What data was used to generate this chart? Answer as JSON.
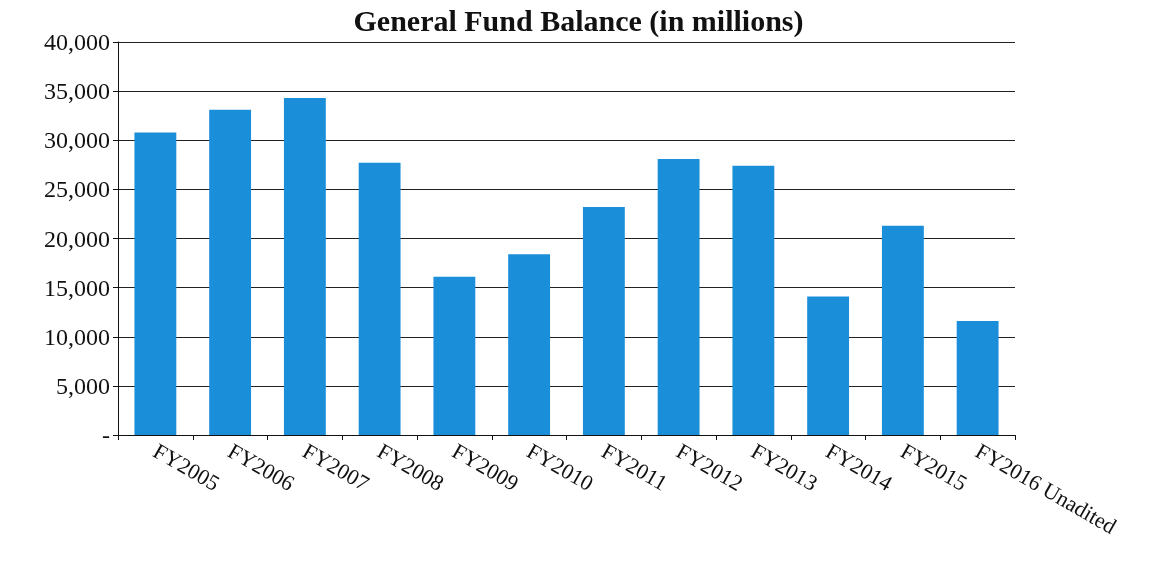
{
  "chart_data": {
    "type": "bar",
    "title": "General Fund Balance (in millions)",
    "categories": [
      "FY2005",
      "FY2006",
      "FY2007",
      "FY2008",
      "FY2009",
      "FY2010",
      "FY2011",
      "FY2012",
      "FY2013",
      "FY2014",
      "FY2015",
      "FY2016 Unadited"
    ],
    "values": [
      30800,
      33100,
      34300,
      27700,
      16100,
      18400,
      23200,
      28100,
      27400,
      14100,
      21300,
      11600
    ],
    "color": "#1a8ed8",
    "ylim": [
      0,
      40000
    ],
    "yticks": [
      {
        "value": 0,
        "label": "-"
      },
      {
        "value": 5000,
        "label": "5,000"
      },
      {
        "value": 10000,
        "label": "10,000"
      },
      {
        "value": 15000,
        "label": "15,000"
      },
      {
        "value": 20000,
        "label": "20,000"
      },
      {
        "value": 25000,
        "label": "25,000"
      },
      {
        "value": 30000,
        "label": "30,000"
      },
      {
        "value": 35000,
        "label": "35,000"
      },
      {
        "value": 40000,
        "label": "40,000"
      }
    ],
    "grid": "y"
  }
}
